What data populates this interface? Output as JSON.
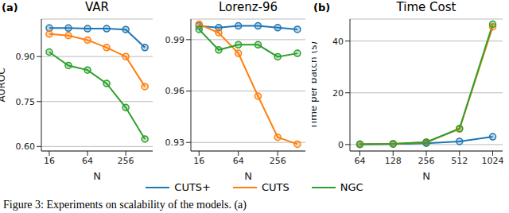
{
  "chart_data": [
    {
      "type": "line",
      "panel_label": "(a)",
      "title": "VAR",
      "x_label": "N",
      "y_label": "AUROC",
      "log": "x",
      "grid": true,
      "legend": "bottom",
      "marker": "circle",
      "x": [
        16,
        32,
        64,
        128,
        256,
        512
      ],
      "xlim": [
        12,
        680
      ],
      "xticks": [
        16,
        64,
        256
      ],
      "ylim": [
        0.585,
        1.025
      ],
      "yticks": [
        {
          "value": 0.6,
          "label": "0.60"
        },
        0.75,
        {
          "value": 0.9,
          "label": "0.90"
        }
      ],
      "series": [
        {
          "name": "CUTS+",
          "color": "#1f77b4",
          "values": [
            0.995,
            0.995,
            0.993,
            0.993,
            0.99,
            0.93
          ]
        },
        {
          "name": "CUTS",
          "color": "#ff7f0e",
          "values": [
            0.975,
            0.97,
            0.955,
            0.93,
            0.9,
            0.8
          ]
        },
        {
          "name": "NGC",
          "color": "#2ca02c",
          "values": [
            0.915,
            0.87,
            0.855,
            0.81,
            0.73,
            0.625
          ]
        }
      ]
    },
    {
      "type": "line",
      "title": "Lorenz-96",
      "x_label": "N",
      "log": "x",
      "grid": true,
      "marker": "circle",
      "x": [
        16,
        32,
        64,
        128,
        256,
        512
      ],
      "xlim": [
        12,
        680
      ],
      "xticks": [
        16,
        64,
        256
      ],
      "ylim": [
        0.925,
        1.002
      ],
      "yticks": [
        0.93,
        0.96,
        0.99
      ],
      "series": [
        {
          "name": "CUTS+",
          "color": "#1f77b4",
          "values": [
            0.998,
            0.997,
            0.998,
            0.998,
            0.997,
            0.996
          ]
        },
        {
          "name": "CUTS",
          "color": "#ff7f0e",
          "values": [
            0.999,
            0.994,
            0.982,
            0.957,
            0.933,
            0.929
          ]
        },
        {
          "name": "NGC",
          "color": "#2ca02c",
          "values": [
            0.996,
            0.984,
            0.987,
            0.987,
            0.98,
            0.982
          ]
        }
      ]
    },
    {
      "type": "line",
      "panel_label": "(b)",
      "title": "Time Cost",
      "x_label": "N",
      "y_label": "Time per batch (s)",
      "log": "x",
      "grid": true,
      "marker": "circle",
      "x": [
        64,
        128,
        256,
        512,
        1024
      ],
      "xlim": [
        52,
        1260
      ],
      "xticks": [
        64,
        128,
        256,
        512,
        1024
      ],
      "ylim": [
        -2.5,
        48.5
      ],
      "yticks": [
        0,
        20,
        40
      ],
      "series": [
        {
          "name": "CUTS+",
          "color": "#1f77b4",
          "values": [
            0.1,
            0.2,
            0.5,
            1.2,
            3
          ]
        },
        {
          "name": "CUTS",
          "color": "#ff7f0e",
          "values": [
            0.1,
            0.3,
            0.9,
            6,
            45.5
          ]
        },
        {
          "name": "NGC",
          "color": "#2ca02c",
          "values": [
            0.1,
            0.3,
            0.9,
            6.2,
            46.5
          ]
        }
      ]
    }
  ],
  "caption": "Figure 3: Experiments on scalability of the models. (a)"
}
